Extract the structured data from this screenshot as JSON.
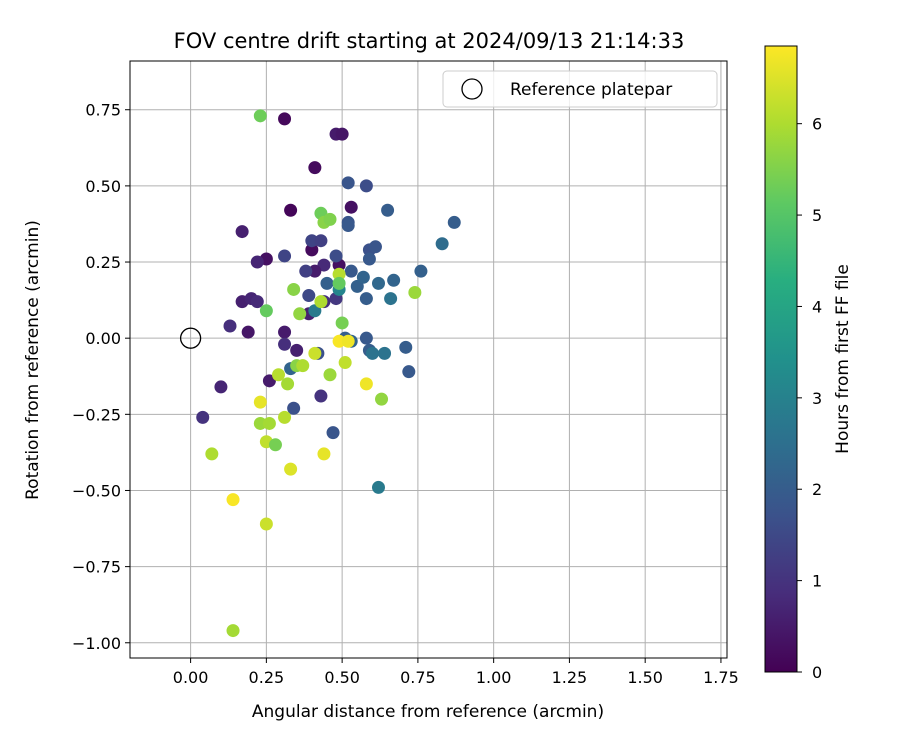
{
  "chart_data": {
    "type": "scatter",
    "title": "FOV centre drift starting at 2024/09/13 21:14:33",
    "xlabel": "Angular distance from reference (arcmin)",
    "ylabel": "Rotation from reference (arcmin)",
    "xlim": [
      -0.2,
      1.77
    ],
    "ylim": [
      -1.05,
      0.91
    ],
    "xticks": [
      0.0,
      0.25,
      0.5,
      0.75,
      1.0,
      1.25,
      1.5,
      1.75
    ],
    "yticks": [
      -1.0,
      -0.75,
      -0.5,
      -0.25,
      0.0,
      0.25,
      0.5,
      0.75
    ],
    "x_tick_labels": [
      "0.00",
      "0.25",
      "0.50",
      "0.75",
      "1.00",
      "1.25",
      "1.50",
      "1.75"
    ],
    "y_tick_labels": [
      "−1.00",
      "−0.75",
      "−0.50",
      "−0.25",
      "0.00",
      "0.25",
      "0.50",
      "0.75"
    ],
    "grid": true,
    "legend_position": "top-right",
    "legend": [
      {
        "label": "Reference platepar",
        "marker": "open-circle"
      }
    ],
    "reference_point": {
      "x": 0.0,
      "y": 0.0
    },
    "colorbar": {
      "label": "Hours from first FF file",
      "min": 0,
      "max": 6.85,
      "ticks": [
        0,
        1,
        2,
        3,
        4,
        5,
        6
      ],
      "tick_labels": [
        "0",
        "1",
        "2",
        "3",
        "4",
        "5",
        "6"
      ],
      "colormap": "viridis"
    },
    "series": [
      {
        "points": [
          {
            "x": 0.31,
            "y": 0.72,
            "c": 0.15
          },
          {
            "x": 0.48,
            "y": 0.67,
            "c": 0.5
          },
          {
            "x": 0.5,
            "y": 0.67,
            "c": 0.4
          },
          {
            "x": 0.41,
            "y": 0.56,
            "c": 0.2
          },
          {
            "x": 0.33,
            "y": 0.42,
            "c": 0.1
          },
          {
            "x": 0.53,
            "y": 0.43,
            "c": 0.3
          },
          {
            "x": 0.17,
            "y": 0.35,
            "c": 0.6
          },
          {
            "x": 0.25,
            "y": 0.26,
            "c": 0.3
          },
          {
            "x": 0.22,
            "y": 0.25,
            "c": 0.7
          },
          {
            "x": 0.4,
            "y": 0.29,
            "c": 0.2
          },
          {
            "x": 0.44,
            "y": 0.24,
            "c": 0.8
          },
          {
            "x": 0.41,
            "y": 0.22,
            "c": 0.5
          },
          {
            "x": 0.49,
            "y": 0.24,
            "c": 0.3
          },
          {
            "x": 0.17,
            "y": 0.12,
            "c": 0.6
          },
          {
            "x": 0.2,
            "y": 0.13,
            "c": 0.7
          },
          {
            "x": 0.22,
            "y": 0.12,
            "c": 0.8
          },
          {
            "x": 0.19,
            "y": 0.02,
            "c": 0.4
          },
          {
            "x": 0.13,
            "y": 0.04,
            "c": 0.9
          },
          {
            "x": 0.31,
            "y": 0.02,
            "c": 0.5
          },
          {
            "x": 0.31,
            "y": -0.02,
            "c": 0.9
          },
          {
            "x": 0.35,
            "y": -0.04,
            "c": 0.6
          },
          {
            "x": 0.26,
            "y": -0.14,
            "c": 0.5
          },
          {
            "x": 0.1,
            "y": -0.16,
            "c": 0.7
          },
          {
            "x": 0.04,
            "y": -0.26,
            "c": 1.0
          },
          {
            "x": 0.39,
            "y": 0.08,
            "c": 0.6
          },
          {
            "x": 0.48,
            "y": 0.13,
            "c": 1.1
          },
          {
            "x": 0.44,
            "y": 0.12,
            "c": 0.9
          },
          {
            "x": 0.43,
            "y": -0.19,
            "c": 1.0
          },
          {
            "x": 0.31,
            "y": 0.27,
            "c": 1.4
          },
          {
            "x": 0.4,
            "y": 0.32,
            "c": 1.4
          },
          {
            "x": 0.43,
            "y": 0.32,
            "c": 1.3
          },
          {
            "x": 0.38,
            "y": 0.22,
            "c": 1.3
          },
          {
            "x": 0.39,
            "y": 0.14,
            "c": 1.5
          },
          {
            "x": 0.52,
            "y": 0.51,
            "c": 1.8
          },
          {
            "x": 0.58,
            "y": 0.5,
            "c": 1.6
          },
          {
            "x": 0.52,
            "y": 0.38,
            "c": 1.8
          },
          {
            "x": 0.52,
            "y": 0.37,
            "c": 1.9
          },
          {
            "x": 0.65,
            "y": 0.42,
            "c": 2.0
          },
          {
            "x": 0.59,
            "y": 0.29,
            "c": 1.7
          },
          {
            "x": 0.61,
            "y": 0.3,
            "c": 1.8
          },
          {
            "x": 0.59,
            "y": 0.26,
            "c": 1.9
          },
          {
            "x": 0.48,
            "y": 0.27,
            "c": 1.6
          },
          {
            "x": 0.53,
            "y": 0.22,
            "c": 1.9
          },
          {
            "x": 0.45,
            "y": 0.18,
            "c": 2.1
          },
          {
            "x": 0.55,
            "y": 0.17,
            "c": 2.1
          },
          {
            "x": 0.57,
            "y": 0.2,
            "c": 2.2
          },
          {
            "x": 0.62,
            "y": 0.18,
            "c": 2.3
          },
          {
            "x": 0.67,
            "y": 0.19,
            "c": 2.2
          },
          {
            "x": 0.76,
            "y": 0.22,
            "c": 2.1
          },
          {
            "x": 0.87,
            "y": 0.38,
            "c": 2.0
          },
          {
            "x": 0.83,
            "y": 0.31,
            "c": 2.4
          },
          {
            "x": 0.58,
            "y": 0.13,
            "c": 2.0
          },
          {
            "x": 0.66,
            "y": 0.13,
            "c": 2.6
          },
          {
            "x": 0.41,
            "y": 0.09,
            "c": 2.8
          },
          {
            "x": 0.42,
            "y": -0.05,
            "c": 1.7
          },
          {
            "x": 0.51,
            "y": 0.0,
            "c": 2.0
          },
          {
            "x": 0.53,
            "y": -0.01,
            "c": 2.2
          },
          {
            "x": 0.58,
            "y": 0.0,
            "c": 1.9
          },
          {
            "x": 0.59,
            "y": -0.04,
            "c": 2.0
          },
          {
            "x": 0.6,
            "y": -0.05,
            "c": 2.6
          },
          {
            "x": 0.64,
            "y": -0.05,
            "c": 2.6
          },
          {
            "x": 0.71,
            "y": -0.03,
            "c": 2.0
          },
          {
            "x": 0.72,
            "y": -0.11,
            "c": 1.9
          },
          {
            "x": 0.33,
            "y": -0.1,
            "c": 2.2
          },
          {
            "x": 0.34,
            "y": -0.23,
            "c": 1.7
          },
          {
            "x": 0.47,
            "y": -0.31,
            "c": 1.8
          },
          {
            "x": 0.62,
            "y": -0.49,
            "c": 2.8
          },
          {
            "x": 0.49,
            "y": 0.16,
            "c": 3.1
          },
          {
            "x": 0.23,
            "y": 0.73,
            "c": 5.3
          },
          {
            "x": 0.43,
            "y": 0.41,
            "c": 5.3
          },
          {
            "x": 0.44,
            "y": 0.38,
            "c": 5.6
          },
          {
            "x": 0.46,
            "y": 0.39,
            "c": 5.5
          },
          {
            "x": 0.49,
            "y": 0.21,
            "c": 6.1
          },
          {
            "x": 0.49,
            "y": 0.18,
            "c": 5.2
          },
          {
            "x": 0.34,
            "y": 0.16,
            "c": 5.6
          },
          {
            "x": 0.43,
            "y": 0.12,
            "c": 6.0
          },
          {
            "x": 0.25,
            "y": 0.09,
            "c": 5.2
          },
          {
            "x": 0.36,
            "y": 0.08,
            "c": 5.7
          },
          {
            "x": 0.74,
            "y": 0.15,
            "c": 5.8
          },
          {
            "x": 0.5,
            "y": 0.05,
            "c": 5.4
          },
          {
            "x": 0.49,
            "y": -0.01,
            "c": 6.8
          },
          {
            "x": 0.52,
            "y": -0.01,
            "c": 6.7
          },
          {
            "x": 0.41,
            "y": -0.05,
            "c": 6.3
          },
          {
            "x": 0.35,
            "y": -0.09,
            "c": 5.6
          },
          {
            "x": 0.37,
            "y": -0.09,
            "c": 6.0
          },
          {
            "x": 0.51,
            "y": -0.08,
            "c": 6.2
          },
          {
            "x": 0.29,
            "y": -0.12,
            "c": 6.1
          },
          {
            "x": 0.32,
            "y": -0.15,
            "c": 5.9
          },
          {
            "x": 0.46,
            "y": -0.12,
            "c": 5.8
          },
          {
            "x": 0.58,
            "y": -0.15,
            "c": 6.7
          },
          {
            "x": 0.23,
            "y": -0.21,
            "c": 6.6
          },
          {
            "x": 0.63,
            "y": -0.2,
            "c": 5.7
          },
          {
            "x": 0.31,
            "y": -0.26,
            "c": 6.1
          },
          {
            "x": 0.23,
            "y": -0.28,
            "c": 5.8
          },
          {
            "x": 0.26,
            "y": -0.28,
            "c": 5.9
          },
          {
            "x": 0.25,
            "y": -0.34,
            "c": 6.2
          },
          {
            "x": 0.28,
            "y": -0.35,
            "c": 5.4
          },
          {
            "x": 0.07,
            "y": -0.38,
            "c": 6.0
          },
          {
            "x": 0.44,
            "y": -0.38,
            "c": 6.6
          },
          {
            "x": 0.33,
            "y": -0.43,
            "c": 6.5
          },
          {
            "x": 0.14,
            "y": -0.53,
            "c": 6.8
          },
          {
            "x": 0.25,
            "y": -0.61,
            "c": 6.3
          },
          {
            "x": 0.14,
            "y": -0.96,
            "c": 5.9
          }
        ]
      }
    ]
  }
}
